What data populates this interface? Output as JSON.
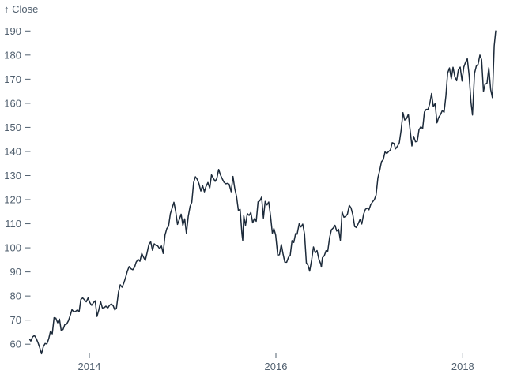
{
  "chart": {
    "axis_label": "↑ Close",
    "colors": {
      "line": "#1c2a3a",
      "axis": "#51606f",
      "background": "#ffffff"
    }
  },
  "chart_data": {
    "type": "line",
    "title": "",
    "ylabel": "Close",
    "xlabel": "",
    "grid": false,
    "legend": null,
    "ylim": [
      60,
      190
    ],
    "xlim": [
      "2013-05-13",
      "2018-05-10"
    ],
    "y_ticks": [
      60,
      70,
      80,
      90,
      100,
      110,
      120,
      130,
      140,
      150,
      160,
      170,
      180,
      190
    ],
    "x_ticks": [
      "2014",
      "2016",
      "2018"
    ],
    "series": [
      {
        "name": "Close",
        "points": [
          [
            "2013-05-13",
            61.9
          ],
          [
            "2013-05-17",
            61.3
          ],
          [
            "2013-05-24",
            63.0
          ],
          [
            "2013-05-31",
            63.6
          ],
          [
            "2013-06-07",
            62.4
          ],
          [
            "2013-06-14",
            60.7
          ],
          [
            "2013-06-21",
            58.5
          ],
          [
            "2013-06-28",
            56.0
          ],
          [
            "2013-07-05",
            59.0
          ],
          [
            "2013-07-12",
            60.3
          ],
          [
            "2013-07-19",
            60.1
          ],
          [
            "2013-07-26",
            62.2
          ],
          [
            "2013-08-02",
            65.4
          ],
          [
            "2013-08-09",
            64.3
          ],
          [
            "2013-08-16",
            71.0
          ],
          [
            "2013-08-23",
            70.8
          ],
          [
            "2013-08-30",
            68.9
          ],
          [
            "2013-09-06",
            70.4
          ],
          [
            "2013-09-13",
            65.7
          ],
          [
            "2013-09-20",
            66.1
          ],
          [
            "2013-09-27",
            68.2
          ],
          [
            "2013-10-04",
            68.3
          ],
          [
            "2013-10-11",
            69.7
          ],
          [
            "2013-10-18",
            71.9
          ],
          [
            "2013-10-25",
            74.3
          ],
          [
            "2013-11-01",
            73.5
          ],
          [
            "2013-11-08",
            73.6
          ],
          [
            "2013-11-15",
            74.2
          ],
          [
            "2013-11-22",
            73.5
          ],
          [
            "2013-11-29",
            78.6
          ],
          [
            "2013-12-06",
            79.2
          ],
          [
            "2013-12-13",
            78.4
          ],
          [
            "2013-12-20",
            77.6
          ],
          [
            "2013-12-27",
            79.2
          ],
          [
            "2014-01-03",
            77.28
          ],
          [
            "2014-01-10",
            76.13
          ],
          [
            "2014-01-17",
            77.24
          ],
          [
            "2014-01-24",
            78.01
          ],
          [
            "2014-01-31",
            71.51
          ],
          [
            "2014-02-07",
            74.24
          ],
          [
            "2014-02-14",
            77.71
          ],
          [
            "2014-02-21",
            75.04
          ],
          [
            "2014-02-28",
            75.18
          ],
          [
            "2014-03-07",
            75.78
          ],
          [
            "2014-03-14",
            74.96
          ],
          [
            "2014-03-21",
            76.12
          ],
          [
            "2014-03-28",
            76.7
          ],
          [
            "2014-04-04",
            75.97
          ],
          [
            "2014-04-11",
            74.23
          ],
          [
            "2014-04-17",
            74.99
          ],
          [
            "2014-04-25",
            81.71
          ],
          [
            "2014-05-02",
            84.65
          ],
          [
            "2014-05-09",
            83.65
          ],
          [
            "2014-05-16",
            85.36
          ],
          [
            "2014-05-23",
            87.73
          ],
          [
            "2014-05-30",
            90.43
          ],
          [
            "2014-06-06",
            92.22
          ],
          [
            "2014-06-13",
            91.28
          ],
          [
            "2014-06-20",
            90.91
          ],
          [
            "2014-06-27",
            91.98
          ],
          [
            "2014-07-03",
            94.03
          ],
          [
            "2014-07-11",
            95.22
          ],
          [
            "2014-07-18",
            94.43
          ],
          [
            "2014-07-25",
            97.67
          ],
          [
            "2014-08-01",
            96.13
          ],
          [
            "2014-08-08",
            94.74
          ],
          [
            "2014-08-15",
            97.98
          ],
          [
            "2014-08-22",
            101.32
          ],
          [
            "2014-08-29",
            102.5
          ],
          [
            "2014-09-05",
            98.97
          ],
          [
            "2014-09-12",
            101.66
          ],
          [
            "2014-09-19",
            100.96
          ],
          [
            "2014-09-26",
            100.75
          ],
          [
            "2014-10-03",
            99.62
          ],
          [
            "2014-10-10",
            100.73
          ],
          [
            "2014-10-17",
            97.67
          ],
          [
            "2014-10-24",
            105.22
          ],
          [
            "2014-10-31",
            108.0
          ],
          [
            "2014-11-07",
            109.01
          ],
          [
            "2014-11-14",
            114.18
          ],
          [
            "2014-11-21",
            116.47
          ],
          [
            "2014-11-28",
            118.93
          ],
          [
            "2014-12-05",
            115.0
          ],
          [
            "2014-12-12",
            109.73
          ],
          [
            "2014-12-19",
            111.78
          ],
          [
            "2014-12-26",
            113.99
          ],
          [
            "2015-01-02",
            109.33
          ],
          [
            "2015-01-09",
            112.01
          ],
          [
            "2015-01-16",
            105.99
          ],
          [
            "2015-01-23",
            112.98
          ],
          [
            "2015-01-30",
            117.16
          ],
          [
            "2015-02-06",
            118.93
          ],
          [
            "2015-02-13",
            127.08
          ],
          [
            "2015-02-20",
            129.5
          ],
          [
            "2015-02-27",
            128.46
          ],
          [
            "2015-03-06",
            126.6
          ],
          [
            "2015-03-13",
            123.59
          ],
          [
            "2015-03-20",
            125.9
          ],
          [
            "2015-03-27",
            123.25
          ],
          [
            "2015-04-02",
            125.32
          ],
          [
            "2015-04-10",
            127.1
          ],
          [
            "2015-04-17",
            124.75
          ],
          [
            "2015-04-24",
            130.28
          ],
          [
            "2015-05-01",
            128.95
          ],
          [
            "2015-05-08",
            127.62
          ],
          [
            "2015-05-15",
            128.77
          ],
          [
            "2015-05-22",
            132.54
          ],
          [
            "2015-05-29",
            130.28
          ],
          [
            "2015-06-05",
            128.65
          ],
          [
            "2015-06-12",
            127.17
          ],
          [
            "2015-06-19",
            126.6
          ],
          [
            "2015-06-26",
            126.75
          ],
          [
            "2015-07-02",
            126.44
          ],
          [
            "2015-07-10",
            123.28
          ],
          [
            "2015-07-17",
            129.62
          ],
          [
            "2015-07-24",
            124.5
          ],
          [
            "2015-07-31",
            121.3
          ],
          [
            "2015-08-07",
            115.52
          ],
          [
            "2015-08-14",
            115.96
          ],
          [
            "2015-08-21",
            105.76
          ],
          [
            "2015-08-24",
            103.12
          ],
          [
            "2015-08-28",
            113.29
          ],
          [
            "2015-09-04",
            109.27
          ],
          [
            "2015-09-11",
            114.21
          ],
          [
            "2015-09-18",
            113.45
          ],
          [
            "2015-09-25",
            114.71
          ],
          [
            "2015-10-02",
            110.38
          ],
          [
            "2015-10-09",
            112.12
          ],
          [
            "2015-10-16",
            111.04
          ],
          [
            "2015-10-23",
            119.08
          ],
          [
            "2015-10-30",
            119.5
          ],
          [
            "2015-11-06",
            121.06
          ],
          [
            "2015-11-13",
            112.34
          ],
          [
            "2015-11-20",
            119.3
          ],
          [
            "2015-11-27",
            117.81
          ],
          [
            "2015-12-04",
            119.03
          ],
          [
            "2015-12-11",
            113.18
          ],
          [
            "2015-12-18",
            106.03
          ],
          [
            "2015-12-24",
            108.03
          ],
          [
            "2015-12-31",
            105.26
          ],
          [
            "2016-01-08",
            96.96
          ],
          [
            "2016-01-15",
            97.13
          ],
          [
            "2016-01-22",
            101.42
          ],
          [
            "2016-01-29",
            97.34
          ],
          [
            "2016-02-05",
            94.02
          ],
          [
            "2016-02-12",
            93.99
          ],
          [
            "2016-02-19",
            96.04
          ],
          [
            "2016-02-26",
            96.91
          ],
          [
            "2016-03-04",
            103.01
          ],
          [
            "2016-03-11",
            102.26
          ],
          [
            "2016-03-18",
            105.92
          ],
          [
            "2016-03-24",
            105.67
          ],
          [
            "2016-04-01",
            109.99
          ],
          [
            "2016-04-08",
            108.66
          ],
          [
            "2016-04-15",
            109.85
          ],
          [
            "2016-04-22",
            105.68
          ],
          [
            "2016-04-29",
            93.74
          ],
          [
            "2016-05-06",
            92.72
          ],
          [
            "2016-05-12",
            90.34
          ],
          [
            "2016-05-20",
            95.22
          ],
          [
            "2016-05-27",
            100.35
          ],
          [
            "2016-06-03",
            97.92
          ],
          [
            "2016-06-10",
            98.83
          ],
          [
            "2016-06-17",
            95.33
          ],
          [
            "2016-06-24",
            93.4
          ],
          [
            "2016-06-27",
            92.04
          ],
          [
            "2016-07-01",
            95.89
          ],
          [
            "2016-07-08",
            96.68
          ],
          [
            "2016-07-15",
            98.78
          ],
          [
            "2016-07-22",
            98.66
          ],
          [
            "2016-07-29",
            104.21
          ],
          [
            "2016-08-05",
            107.48
          ],
          [
            "2016-08-12",
            108.18
          ],
          [
            "2016-08-19",
            109.36
          ],
          [
            "2016-08-26",
            106.94
          ],
          [
            "2016-09-02",
            107.73
          ],
          [
            "2016-09-09",
            103.13
          ],
          [
            "2016-09-16",
            114.92
          ],
          [
            "2016-09-23",
            112.71
          ],
          [
            "2016-09-30",
            113.05
          ],
          [
            "2016-10-07",
            114.06
          ],
          [
            "2016-10-14",
            117.63
          ],
          [
            "2016-10-21",
            116.6
          ],
          [
            "2016-10-28",
            113.72
          ],
          [
            "2016-11-04",
            108.84
          ],
          [
            "2016-11-11",
            108.43
          ],
          [
            "2016-11-18",
            110.06
          ],
          [
            "2016-11-25",
            111.79
          ],
          [
            "2016-12-02",
            109.9
          ],
          [
            "2016-12-09",
            113.95
          ],
          [
            "2016-12-16",
            115.97
          ],
          [
            "2016-12-23",
            116.52
          ],
          [
            "2016-12-30",
            115.82
          ],
          [
            "2017-01-06",
            117.91
          ],
          [
            "2017-01-13",
            119.04
          ],
          [
            "2017-01-20",
            120.0
          ],
          [
            "2017-01-27",
            121.95
          ],
          [
            "2017-02-03",
            129.08
          ],
          [
            "2017-02-10",
            132.12
          ],
          [
            "2017-02-17",
            135.72
          ],
          [
            "2017-02-24",
            136.66
          ],
          [
            "2017-03-03",
            139.78
          ],
          [
            "2017-03-10",
            139.14
          ],
          [
            "2017-03-17",
            139.99
          ],
          [
            "2017-03-24",
            140.64
          ],
          [
            "2017-03-31",
            143.66
          ],
          [
            "2017-04-07",
            143.34
          ],
          [
            "2017-04-13",
            141.05
          ],
          [
            "2017-04-21",
            142.27
          ],
          [
            "2017-04-28",
            143.65
          ],
          [
            "2017-05-05",
            148.96
          ],
          [
            "2017-05-12",
            156.1
          ],
          [
            "2017-05-19",
            153.06
          ],
          [
            "2017-05-26",
            153.61
          ],
          [
            "2017-06-02",
            155.45
          ],
          [
            "2017-06-09",
            148.98
          ],
          [
            "2017-06-16",
            142.27
          ],
          [
            "2017-06-23",
            146.28
          ],
          [
            "2017-06-30",
            144.02
          ],
          [
            "2017-07-07",
            144.18
          ],
          [
            "2017-07-14",
            149.04
          ],
          [
            "2017-07-21",
            150.27
          ],
          [
            "2017-07-28",
            149.5
          ],
          [
            "2017-08-04",
            156.39
          ],
          [
            "2017-08-11",
            157.48
          ],
          [
            "2017-08-18",
            157.5
          ],
          [
            "2017-08-25",
            159.86
          ],
          [
            "2017-09-01",
            164.05
          ],
          [
            "2017-09-08",
            158.63
          ],
          [
            "2017-09-15",
            159.88
          ],
          [
            "2017-09-22",
            151.89
          ],
          [
            "2017-09-29",
            154.12
          ],
          [
            "2017-10-06",
            155.3
          ],
          [
            "2017-10-13",
            156.99
          ],
          [
            "2017-10-20",
            156.25
          ],
          [
            "2017-10-27",
            163.05
          ],
          [
            "2017-11-03",
            172.5
          ],
          [
            "2017-11-10",
            174.67
          ],
          [
            "2017-11-17",
            170.15
          ],
          [
            "2017-11-24",
            174.97
          ],
          [
            "2017-12-01",
            171.05
          ],
          [
            "2017-12-08",
            169.37
          ],
          [
            "2017-12-15",
            173.97
          ],
          [
            "2017-12-22",
            175.01
          ],
          [
            "2017-12-29",
            169.23
          ],
          [
            "2018-01-05",
            175.0
          ],
          [
            "2018-01-12",
            177.09
          ],
          [
            "2018-01-19",
            178.46
          ],
          [
            "2018-01-26",
            171.51
          ],
          [
            "2018-02-02",
            160.5
          ],
          [
            "2018-02-08",
            155.15
          ],
          [
            "2018-02-16",
            172.43
          ],
          [
            "2018-02-23",
            175.5
          ],
          [
            "2018-03-02",
            176.21
          ],
          [
            "2018-03-09",
            179.98
          ],
          [
            "2018-03-16",
            178.02
          ],
          [
            "2018-03-23",
            164.94
          ],
          [
            "2018-03-29",
            167.78
          ],
          [
            "2018-04-06",
            168.38
          ],
          [
            "2018-04-13",
            174.73
          ],
          [
            "2018-04-20",
            165.72
          ],
          [
            "2018-04-27",
            162.32
          ],
          [
            "2018-05-04",
            183.83
          ],
          [
            "2018-05-10",
            190.04
          ]
        ]
      }
    ]
  }
}
